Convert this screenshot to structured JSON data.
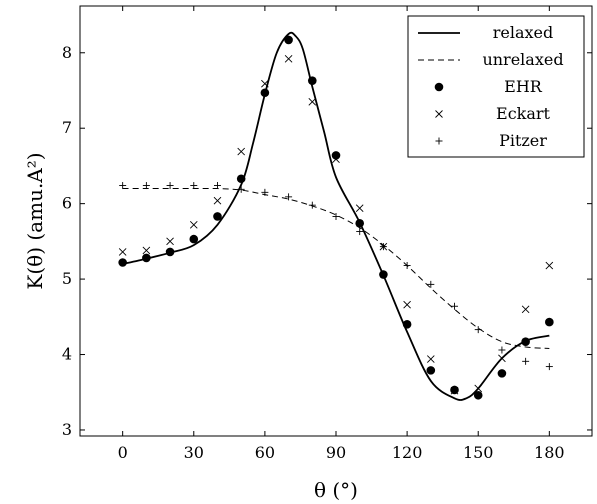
{
  "chart_data": {
    "type": "line",
    "xlabel": "θ (°)",
    "ylabel": "K(θ) (amu.A²)",
    "xlim": [
      -18,
      198
    ],
    "ylim": [
      2.92,
      8.62
    ],
    "x_ticks": [
      0,
      30,
      60,
      90,
      120,
      150,
      180
    ],
    "y_ticks": [
      3,
      4,
      5,
      6,
      7,
      8
    ],
    "grid": false,
    "legend_position": "top-right",
    "series": [
      {
        "name": "relaxed",
        "style": "solid-line",
        "x": [
          0,
          10,
          20,
          30,
          40,
          50,
          55,
          60,
          65,
          70,
          73,
          76,
          80,
          85,
          90,
          100,
          110,
          120,
          130,
          140,
          145,
          150,
          160,
          170,
          180
        ],
        "y": [
          5.2,
          5.27,
          5.35,
          5.45,
          5.72,
          6.25,
          6.8,
          7.45,
          8.0,
          8.25,
          8.22,
          8.05,
          7.55,
          6.95,
          6.35,
          5.75,
          5.05,
          4.3,
          3.65,
          3.42,
          3.42,
          3.55,
          3.95,
          4.18,
          4.25
        ]
      },
      {
        "name": "unrelaxed",
        "style": "dashed-line",
        "x": [
          0,
          10,
          20,
          30,
          40,
          50,
          60,
          70,
          80,
          90,
          100,
          110,
          120,
          130,
          140,
          150,
          160,
          170,
          180
        ],
        "y": [
          6.2,
          6.2,
          6.2,
          6.2,
          6.2,
          6.18,
          6.12,
          6.06,
          5.97,
          5.85,
          5.68,
          5.45,
          5.18,
          4.88,
          4.6,
          4.35,
          4.17,
          4.1,
          4.08
        ]
      },
      {
        "name": "EHR",
        "style": "filled-circle",
        "x": [
          0,
          10,
          20,
          30,
          40,
          50,
          60,
          70,
          80,
          90,
          100,
          110,
          120,
          130,
          140,
          150,
          160,
          170,
          180
        ],
        "y": [
          5.22,
          5.28,
          5.36,
          5.53,
          5.83,
          6.33,
          7.47,
          8.17,
          7.63,
          6.64,
          5.74,
          5.06,
          4.4,
          3.79,
          3.53,
          3.46,
          3.75,
          4.17,
          4.43
        ]
      },
      {
        "name": "Eckart",
        "style": "cross",
        "x": [
          0,
          10,
          20,
          30,
          40,
          50,
          60,
          70,
          80,
          90,
          100,
          110,
          120,
          130,
          140,
          150,
          160,
          170,
          180
        ],
        "y": [
          5.36,
          5.38,
          5.5,
          5.72,
          6.04,
          6.69,
          7.59,
          7.92,
          7.35,
          6.59,
          5.94,
          5.43,
          4.66,
          3.94,
          3.52,
          3.55,
          3.95,
          4.6,
          5.18
        ]
      },
      {
        "name": "Pitzer",
        "style": "plus",
        "x": [
          0,
          10,
          20,
          30,
          40,
          50,
          60,
          70,
          80,
          90,
          100,
          110,
          120,
          130,
          140,
          150,
          160,
          170,
          180
        ],
        "y": [
          6.24,
          6.24,
          6.24,
          6.24,
          6.24,
          6.19,
          6.15,
          6.09,
          5.98,
          5.83,
          5.63,
          5.43,
          5.18,
          4.93,
          4.64,
          4.33,
          4.06,
          3.91,
          3.84
        ]
      }
    ]
  }
}
